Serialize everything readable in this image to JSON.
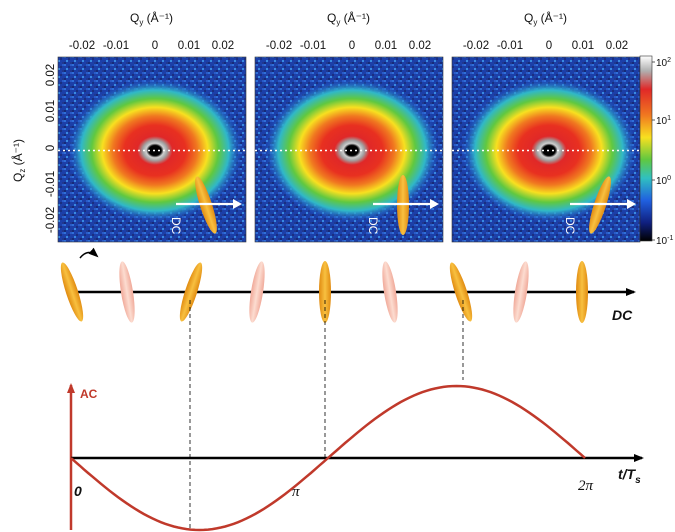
{
  "panels": {
    "qy_label": "Q",
    "qy_sub": "y",
    "qy_unit": " (Å⁻¹)",
    "qz_label": "Q",
    "qz_sub": "z",
    "qz_unit": " (Å⁻¹)",
    "x_ticks": [
      "-0.02",
      "-0.01",
      "0",
      "0.01",
      "0.02"
    ],
    "y_ticks": [
      "0.02",
      "0.01",
      "0",
      "-0.01",
      "-0.02"
    ],
    "dc_label": "DC",
    "count": 3,
    "tilt_deg": [
      -18,
      0,
      18
    ]
  },
  "colorbar": {
    "ticks": [
      {
        "base": "10",
        "exp": "2"
      },
      {
        "base": "10",
        "exp": "1"
      },
      {
        "base": "10",
        "exp": "0"
      },
      {
        "base": "10",
        "exp": "-1"
      }
    ],
    "colors": [
      "#ffffff",
      "#b0b0b0",
      "#e02828",
      "#f07820",
      "#f8e020",
      "#60c840",
      "#30c0c0",
      "#2060e0",
      "#102080",
      "#000000"
    ]
  },
  "rotation_axis": {
    "label": "DC",
    "ellipse_tilts_deg": [
      -18,
      -9,
      18,
      9,
      0,
      -9,
      -18,
      9,
      0
    ],
    "ellipse_styles": [
      "solid",
      "faded",
      "solid",
      "faded",
      "solid",
      "faded",
      "solid",
      "faded",
      "solid"
    ]
  },
  "ac_plot": {
    "y_label": "AC",
    "x_label_t": "t/T",
    "x_label_sub": "s",
    "origin_label": "0",
    "pi_label": "π",
    "two_pi_label": "2π",
    "curve_color": "#c0392b"
  }
}
